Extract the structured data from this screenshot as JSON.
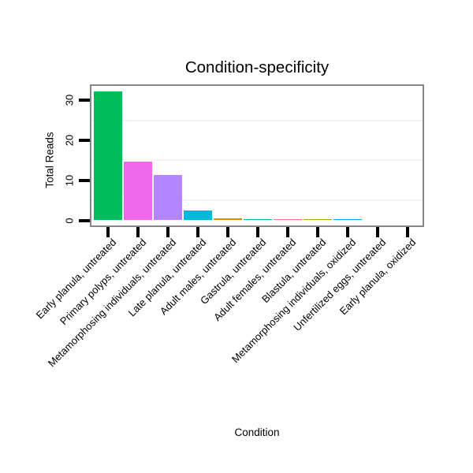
{
  "chart_data": {
    "type": "bar",
    "title": "Condition-specificity",
    "xlabel": "Condition",
    "ylabel": "Total Reads",
    "categories": [
      "Early planula, untreated",
      "Primary polyps, untreated",
      "Metamorphosing individuals, untreated",
      "Late planula, untreated",
      "Adult males, untreated",
      "Gastrula, untreated",
      "Adult females, untreated",
      "Blastula, untreated",
      "Metamorphosing individuals, oxidized",
      "Unfertilized eggs, untreated",
      "Early planula, oxidized"
    ],
    "values": [
      32.2,
      14.7,
      11.4,
      2.4,
      0.4,
      0.25,
      0.25,
      0.25,
      0.25,
      0,
      0
    ],
    "bar_colors": [
      "#00BD5C",
      "#EF67EB",
      "#B385FF",
      "#00BADE",
      "#DB8E00",
      "#00C1A7",
      "#F8766D",
      "#AEA200",
      "#00A6FF",
      "#FF63B6",
      "#64B200"
    ],
    "ylim": [
      0,
      33.6
    ],
    "yticks": [
      0,
      10,
      20,
      30
    ],
    "grid_minor_y": [
      5,
      15,
      25
    ],
    "grid_on": true,
    "legend_position": "none",
    "style": {
      "panel_border_color": "#868686",
      "grid_color": "#f4f4f4",
      "tick_color": "#000000",
      "text_color": "#000000",
      "background_color": "#ffffff"
    }
  }
}
